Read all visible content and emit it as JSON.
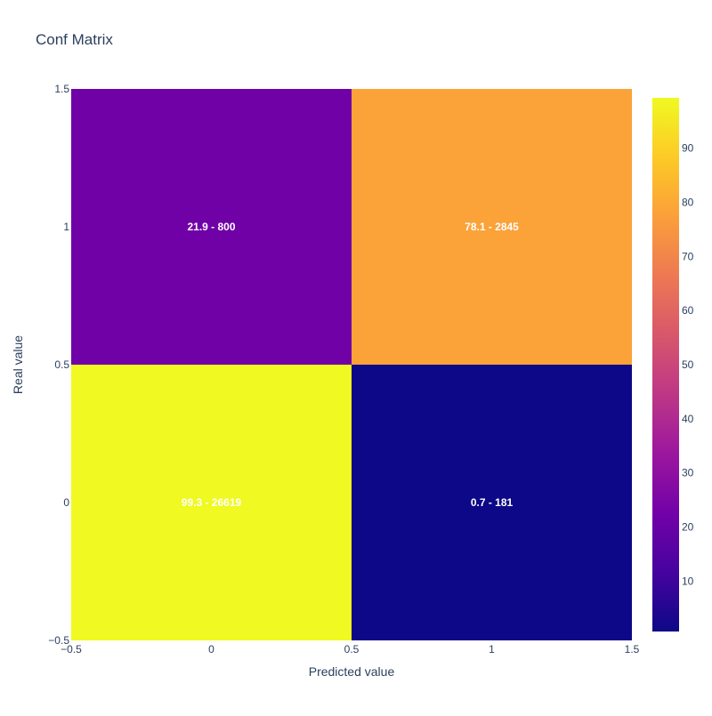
{
  "chart_data": {
    "type": "heatmap",
    "title": "Conf Matrix",
    "xlabel": "Predicted value",
    "ylabel": "Real value",
    "x_categories": [
      0,
      1
    ],
    "y_categories": [
      0,
      1
    ],
    "xlim": [
      -0.5,
      1.5
    ],
    "ylim": [
      -0.5,
      1.5
    ],
    "x_tick_labels": [
      "−0.5",
      "0",
      "0.5",
      "1",
      "1.5"
    ],
    "x_tick_values": [
      -0.5,
      0,
      0.5,
      1,
      1.5
    ],
    "y_tick_labels": [
      "−0.5",
      "0",
      "0.5",
      "1",
      "1.5"
    ],
    "y_tick_values": [
      -0.5,
      0,
      0.5,
      1,
      1.5
    ],
    "cells": [
      {
        "x": 0,
        "y": 1,
        "value": 21.9,
        "label": "21.9 - 800"
      },
      {
        "x": 1,
        "y": 1,
        "value": 78.1,
        "label": "78.1 - 2845"
      },
      {
        "x": 0,
        "y": 0,
        "value": 99.3,
        "label": "99.3 - 26619"
      },
      {
        "x": 1,
        "y": 0,
        "value": 0.7,
        "label": "0.7 - 181"
      }
    ],
    "colorscale": "Plasma",
    "colorscale_stops": [
      "#0d0887",
      "#46039f",
      "#7201a8",
      "#9c179e",
      "#bd3786",
      "#d8576b",
      "#ed7953",
      "#fb9f3a",
      "#fdca26",
      "#f0f921"
    ],
    "colorbar_range": [
      0.7,
      99.3
    ],
    "colorbar_ticks": [
      10,
      20,
      30,
      40,
      50,
      60,
      70,
      80,
      90
    ],
    "grid": false,
    "legend": "colorbar-right"
  }
}
